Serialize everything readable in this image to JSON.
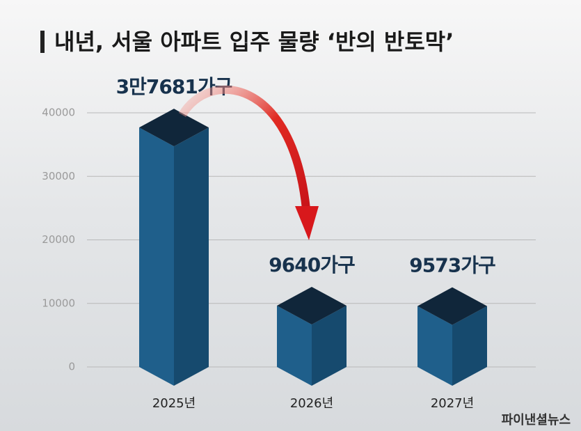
{
  "chart_data": {
    "type": "bar3d",
    "title": "내년, 서울 아파트 입주 물량 ‘반의 반토막’",
    "categories": [
      "2025년",
      "2026년",
      "2027년"
    ],
    "values": [
      37681,
      9640,
      9573
    ],
    "value_labels": [
      "3만7681가구",
      "9640가구",
      "9573가구"
    ],
    "color": "#1f5f8b",
    "ylim": [
      0,
      40000
    ],
    "yticks": [
      0,
      10000,
      20000,
      30000,
      40000
    ],
    "grid": true,
    "source": "파이낸셜뉴스"
  }
}
